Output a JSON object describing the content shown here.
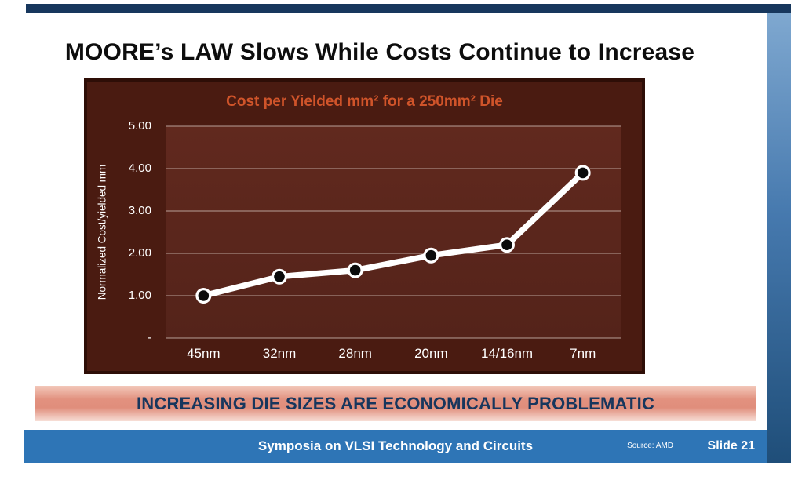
{
  "slide": {
    "title": "MOORE’s LAW Slows While Costs Continue to Increase",
    "banner": "INCREASING DIE SIZES ARE ECONOMICALLY PROBLEMATIC",
    "footer": {
      "conference": "Symposia on VLSI Technology and Circuits",
      "source": "Source: AMD",
      "slide_number": "Slide 21"
    }
  },
  "chart_data": {
    "type": "line",
    "title": "Cost per Yielded mm² for a 250mm² Die",
    "ylabel": "Normalized Cost/yielded mm",
    "categories": [
      "45nm",
      "32nm",
      "28nm",
      "20nm",
      "14/16nm",
      "7nm"
    ],
    "values": [
      1.0,
      1.45,
      1.6,
      1.95,
      2.2,
      3.9
    ],
    "ylim": [
      0,
      5
    ],
    "ytick_labels": [
      "5.00",
      "4.00",
      "3.00",
      "2.00",
      "1.00",
      "-"
    ],
    "grid": true,
    "legend": "none",
    "colors": {
      "line": "#FFFFFF",
      "marker_fill": "#0B0B0B",
      "marker_ring": "#FFFFFF",
      "gridline": "#C9B6AE",
      "title": "#D0542A",
      "plot_background": "#5B261C",
      "chart_background": "#4A1B11",
      "banner_text": "#17365D",
      "footer_background": "#2E75B6"
    }
  }
}
